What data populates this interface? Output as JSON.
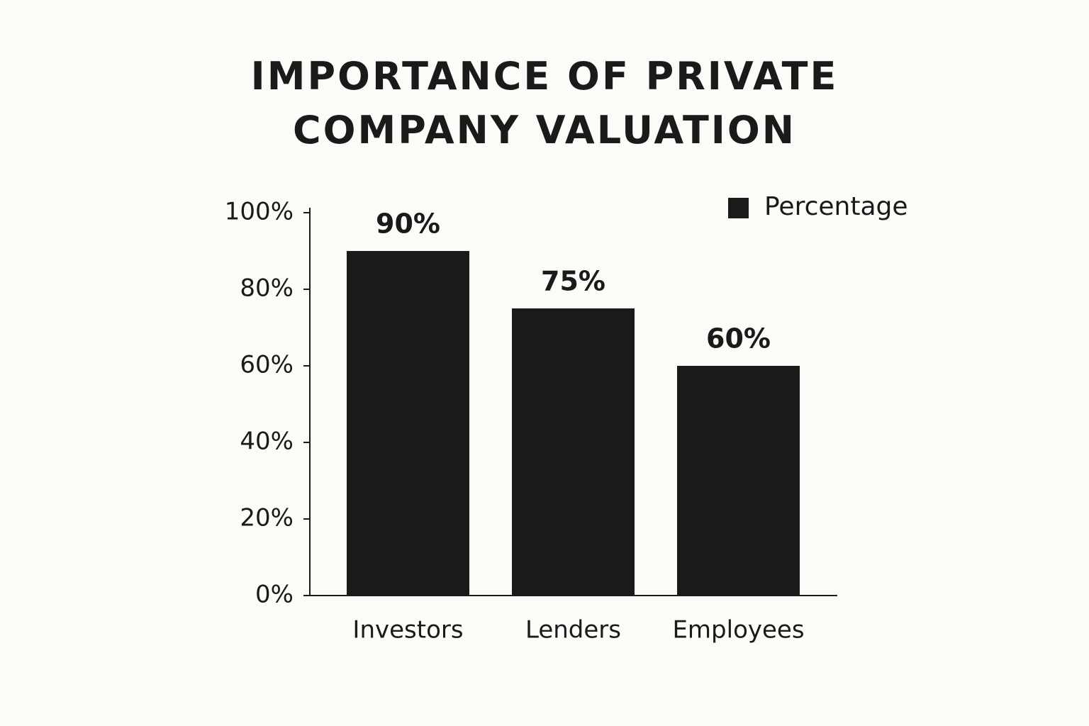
{
  "chart_data": {
    "type": "bar",
    "title": "IMPORTANCE OF PRIVATE COMPANY VALUATION",
    "categories": [
      "Investors",
      "Lenders",
      "Employees"
    ],
    "series": [
      {
        "name": "Percentage",
        "color": "#1a1a1a",
        "values": [
          90,
          75,
          60
        ],
        "value_labels": [
          "90%",
          "75%",
          "60%"
        ]
      }
    ],
    "ylim": [
      0,
      100
    ],
    "yticks": [
      {
        "value": 0,
        "label": "0%"
      },
      {
        "value": 20,
        "label": "20%"
      },
      {
        "value": 40,
        "label": "40%"
      },
      {
        "value": 60,
        "label": "60%"
      },
      {
        "value": 80,
        "label": "80%"
      },
      {
        "value": 100,
        "label": "100%"
      }
    ],
    "grid": false,
    "legend": "top-right"
  }
}
